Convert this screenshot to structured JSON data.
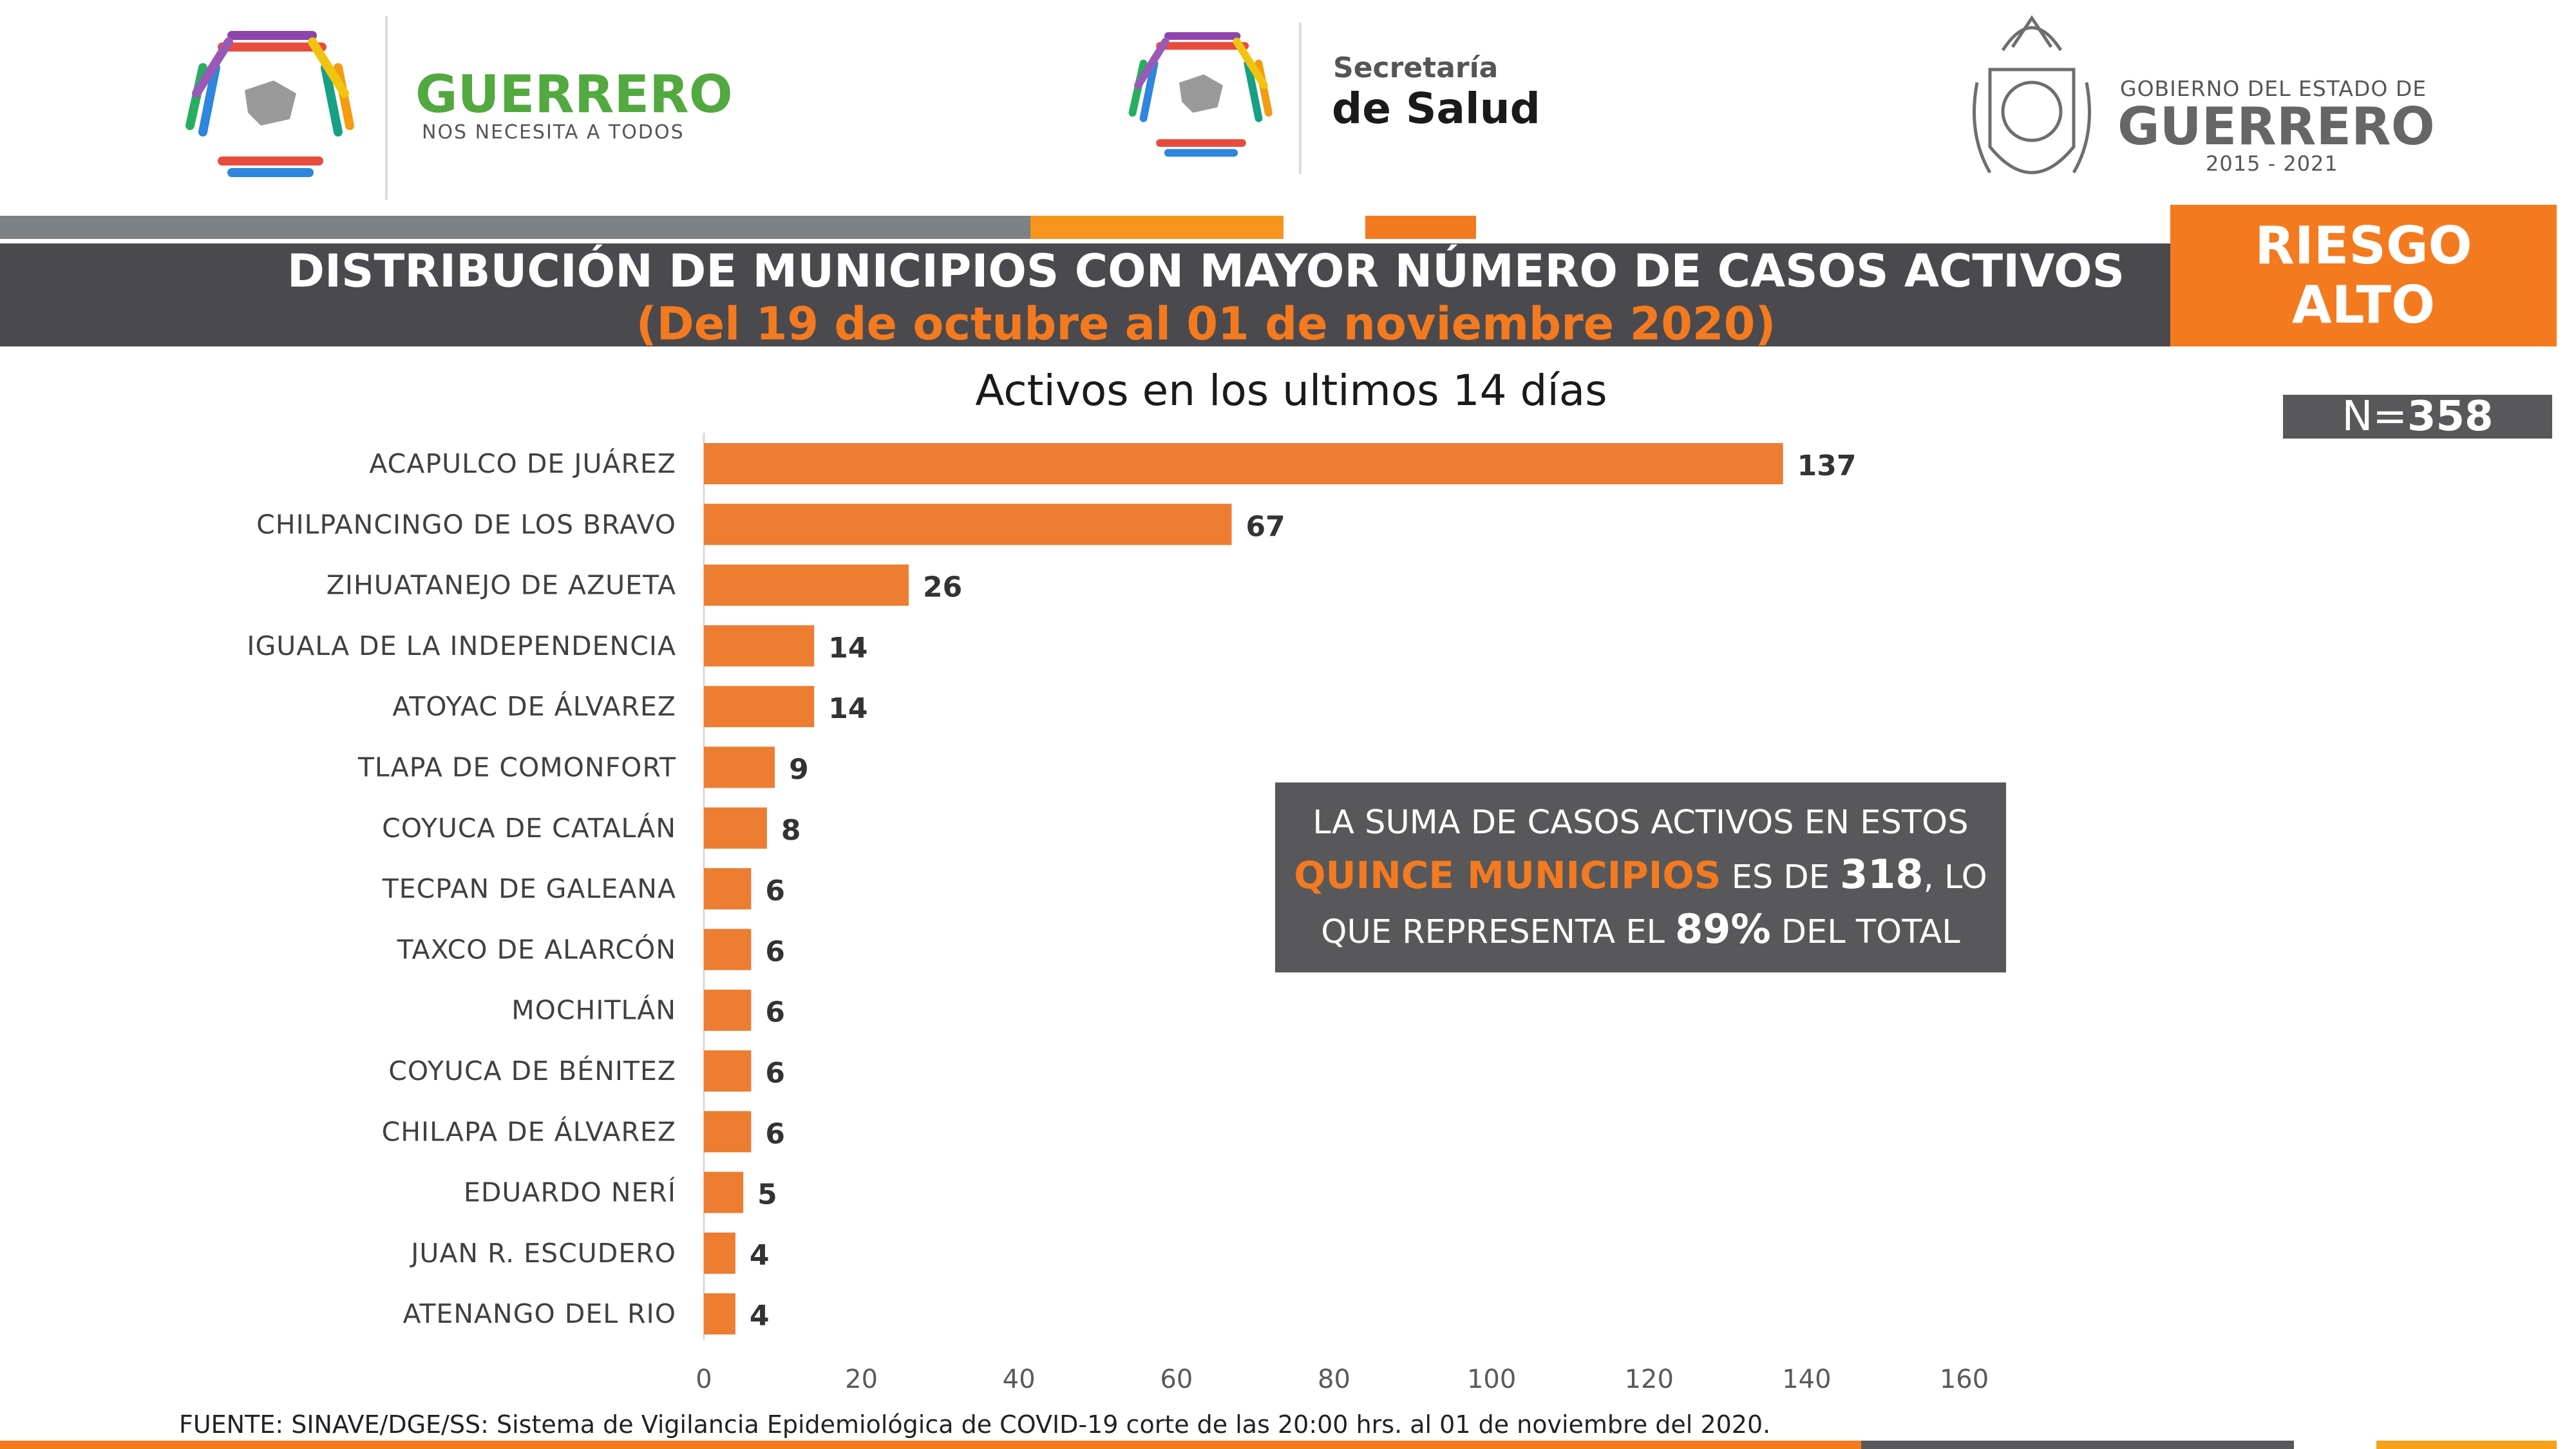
{
  "logos": {
    "guerrero_left": {
      "main": "GUERRERO",
      "sub": "NOS NECESITA A TODOS"
    },
    "salud": {
      "line1": "Secretaría",
      "line2": "de Salud"
    },
    "gobierno": {
      "line1": "GOBIERNO DEL ESTADO DE",
      "line2": "GUERRERO",
      "line3": "2015 - 2021"
    }
  },
  "header": {
    "title": "DISTRIBUCIÓN DE MUNICIPIOS CON MAYOR NÚMERO DE  CASOS ACTIVOS",
    "subtitle": "(Del 19 de octubre al 01 de noviembre 2020)",
    "risk_line1": "RIESGO",
    "risk_line2": "ALTO"
  },
  "n_total": {
    "label": "N=",
    "value": "358"
  },
  "note": {
    "part1": "LA SUMA DE CASOS ACTIVOS EN ESTOS",
    "highlight": "QUINCE MUNICIPIOS",
    "part2": " ES DE ",
    "sum": "318",
    "part3": ", LO",
    "part4": "QUE REPRESENTA EL ",
    "percent": "89%",
    "part5": " DEL TOTAL"
  },
  "source": "FUENTE: SINAVE/DGE/SS: Sistema de Vigilancia Epidemiológica de COVID-19 corte de las 20:00 hrs. al 01 de noviembre del 2020.",
  "colors": {
    "bar": "#ed7d31",
    "orange": "#f47a1f",
    "dark_gray": "#4a4a4e",
    "gray": "#58585a"
  },
  "chart_data": {
    "type": "bar",
    "orientation": "horizontal",
    "title": "Activos en los ultimos 14 días",
    "categories": [
      "ACAPULCO DE JUÁREZ",
      "CHILPANCINGO DE LOS BRAVO",
      "ZIHUATANEJO DE AZUETA",
      "IGUALA DE LA INDEPENDENCIA",
      "ATOYAC DE ÁLVAREZ",
      "TLAPA DE COMONFORT",
      "COYUCA DE CATALÁN",
      "TECPAN DE GALEANA",
      "TAXCO DE ALARCÓN",
      "MOCHITLÁN",
      "COYUCA DE BÉNITEZ",
      "CHILAPA DE ÁLVAREZ",
      "EDUARDO NERÍ",
      "JUAN R. ESCUDERO",
      "ATENANGO DEL RIO"
    ],
    "values": [
      137,
      67,
      26,
      14,
      14,
      9,
      8,
      6,
      6,
      6,
      6,
      6,
      5,
      4,
      4
    ],
    "xlim": [
      0,
      160
    ],
    "xticks": [
      0,
      20,
      40,
      60,
      80,
      100,
      120,
      140,
      160
    ],
    "grid": false,
    "data_labels": true
  }
}
